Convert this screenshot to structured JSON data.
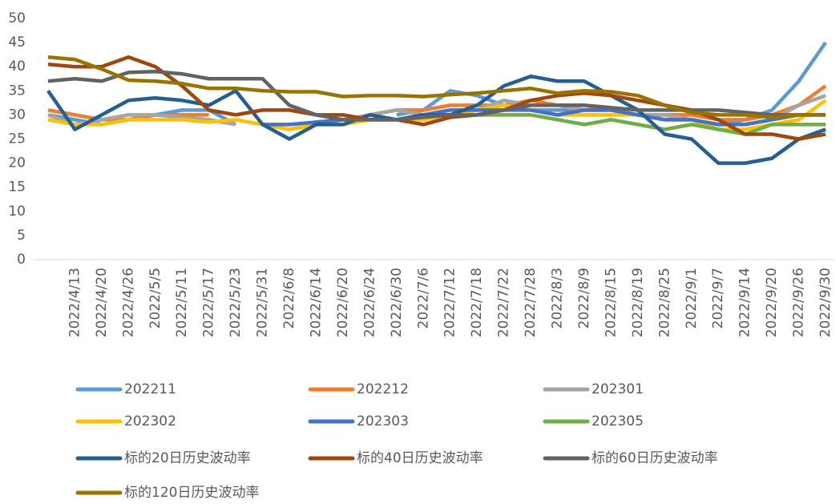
{
  "chart_data": {
    "type": "line",
    "categories": [
      null,
      "2022/4/13",
      "2022/4/20",
      "2022/4/26",
      "2022/5/5",
      "2022/5/11",
      "2022/5/17",
      "2022/5/23",
      "2022/5/31",
      "2022/6/8",
      "2022/6/14",
      "2022/6/20",
      "2022/6/24",
      "2022/6/30",
      "2022/7/6",
      "2022/7/12",
      "2022/7/18",
      "2022/7/22",
      "2022/7/28",
      "2022/8/3",
      "2022/8/9",
      "2022/8/15",
      "2022/8/19",
      "2022/8/25",
      "2022/9/1",
      "2022/9/7",
      "2022/9/14",
      "2022/9/20",
      "2022/9/26",
      "2022/9/30"
    ],
    "ylim": [
      0,
      50
    ],
    "yticks": [
      0,
      5,
      10,
      15,
      20,
      25,
      30,
      35,
      40,
      45,
      50
    ],
    "series": [
      {
        "name": "202211",
        "color": "#5b9bd5",
        "values": [
          30,
          29,
          28,
          29,
          30,
          31,
          31,
          28,
          null,
          null,
          null,
          null,
          null,
          30,
          31,
          35,
          34,
          32,
          31,
          31,
          31,
          31,
          30,
          29,
          29,
          28,
          29,
          31,
          37,
          45
        ]
      },
      {
        "name": "202212",
        "color": "#ed7d31",
        "values": [
          31,
          30,
          29,
          29,
          30,
          30,
          30,
          null,
          null,
          null,
          null,
          null,
          30,
          31,
          31,
          32,
          32,
          32,
          33,
          32,
          32,
          31,
          30,
          30,
          30,
          29,
          29,
          30,
          32,
          36
        ]
      },
      {
        "name": "202301",
        "color": "#a5a5a5",
        "values": [
          30,
          28,
          29,
          30,
          30,
          29.5,
          29,
          28,
          null,
          27,
          28,
          29,
          30,
          31,
          30,
          30,
          31,
          33,
          32,
          32,
          31,
          31,
          30,
          30,
          29,
          28,
          28,
          29,
          32,
          34
        ]
      },
      {
        "name": "202302",
        "color": "#ffc000",
        "values": [
          29,
          28,
          28,
          29,
          29,
          29,
          28.5,
          29,
          28,
          27,
          28,
          28,
          29,
          29,
          29,
          30,
          31,
          32,
          31,
          30,
          30,
          30,
          30,
          29,
          29,
          27,
          27,
          28,
          29,
          33
        ]
      },
      {
        "name": "202303",
        "color": "#4472c4",
        "values": [
          null,
          null,
          null,
          null,
          null,
          null,
          null,
          null,
          28,
          28,
          28.5,
          29,
          29,
          29,
          30,
          31,
          31,
          31,
          31,
          30,
          31,
          31,
          30,
          29,
          29,
          28,
          28,
          29,
          30,
          30
        ]
      },
      {
        "name": "202305",
        "color": "#70ad47",
        "values": [
          null,
          null,
          null,
          null,
          null,
          null,
          null,
          null,
          null,
          null,
          null,
          null,
          null,
          null,
          null,
          null,
          30,
          30,
          30,
          29,
          28,
          29,
          28,
          27,
          28,
          27,
          26,
          28,
          28,
          28
        ]
      },
      {
        "name": "标的20日历史波动率",
        "color": "#255e91",
        "values": [
          35,
          27,
          30,
          33,
          33.5,
          33,
          32,
          35,
          28,
          25,
          28,
          28,
          30,
          29,
          30,
          30,
          32,
          36,
          38,
          37,
          37,
          34,
          31,
          26,
          25,
          20,
          20,
          21,
          25,
          27
        ]
      },
      {
        "name": "标的40日历史波动率",
        "color": "#9e480e",
        "values": [
          40.5,
          40,
          40,
          42,
          40,
          36,
          31,
          30,
          31,
          31,
          30,
          30,
          29,
          29,
          28,
          29.5,
          30,
          31,
          33,
          34,
          34.5,
          34,
          33,
          32,
          31,
          29,
          26,
          26,
          25,
          26
        ]
      },
      {
        "name": "标的60日历史波动率",
        "color": "#636363",
        "values": [
          37,
          37.5,
          37,
          38.8,
          39,
          38.5,
          37.5,
          37.5,
          37.5,
          32,
          30,
          29,
          29,
          29,
          29.5,
          30,
          30,
          31,
          32,
          32,
          32,
          31.5,
          31,
          31,
          31,
          31,
          30.5,
          30,
          30,
          30
        ]
      },
      {
        "name": "标的120日历史波动率",
        "color": "#997300",
        "values": [
          42,
          41.5,
          39.5,
          37.2,
          37,
          36.5,
          35.5,
          35.5,
          35,
          34.8,
          34.8,
          33.8,
          34,
          34,
          33.8,
          34.2,
          34.5,
          35,
          35.5,
          34.5,
          35,
          34.8,
          34,
          32,
          30.5,
          30,
          30,
          29.5,
          30,
          30
        ]
      }
    ]
  }
}
